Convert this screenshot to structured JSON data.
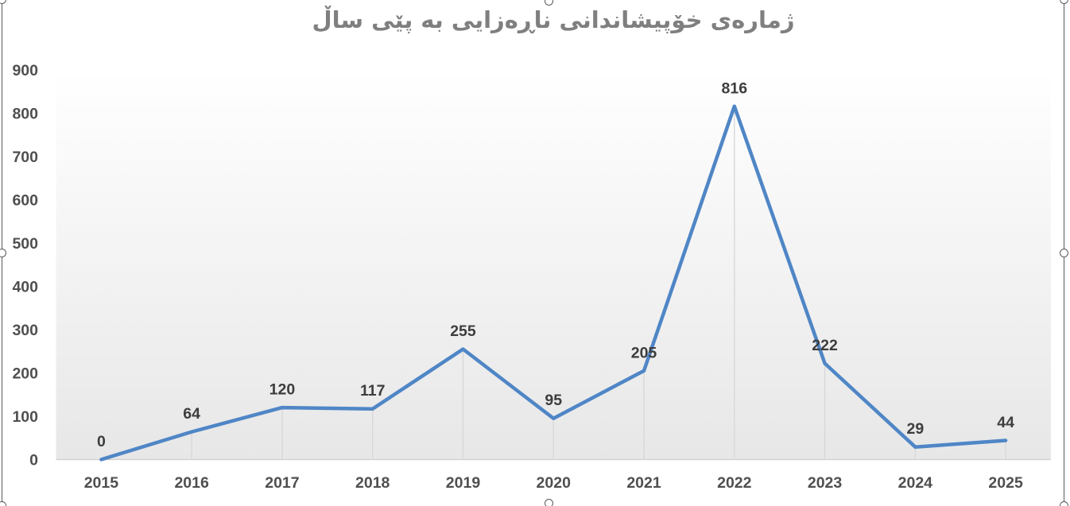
{
  "title": "ژمارەی خۆپیشاندانی ناڕەزایی به پێی ساڵ",
  "chart_data": {
    "type": "line",
    "title": "ژمارەی خۆپیشاندانی ناڕەزایی به پێی ساڵ",
    "categories": [
      "2015",
      "2016",
      "2017",
      "2018",
      "2019",
      "2020",
      "2021",
      "2022",
      "2023",
      "2024",
      "2025"
    ],
    "series": [
      {
        "name": "",
        "values": [
          0,
          64,
          120,
          117,
          255,
          95,
          205,
          816,
          222,
          29,
          44
        ]
      }
    ],
    "data_labels": [
      0,
      64,
      120,
      117,
      255,
      95,
      205,
      816,
      222,
      29,
      44
    ],
    "xlabel": "",
    "ylabel": "",
    "ylim": [
      0,
      900
    ],
    "ytick_step": 100,
    "yticks": [
      0,
      100,
      200,
      300,
      400,
      500,
      600,
      700,
      800,
      900
    ],
    "legend": "none",
    "grid": "vertical-drop-lines-only",
    "colors": {
      "line": "#4f86c6",
      "drop_line": "#d8d8d8",
      "axis_line": "#d2d2d2",
      "tick_text": "#4f4f4f",
      "data_label_text": "#3d3d3d",
      "title_text": "#7f7f7f",
      "plot_top": "#ffffff",
      "plot_bottom": "#e7e7e7",
      "selection": "#595959"
    }
  }
}
